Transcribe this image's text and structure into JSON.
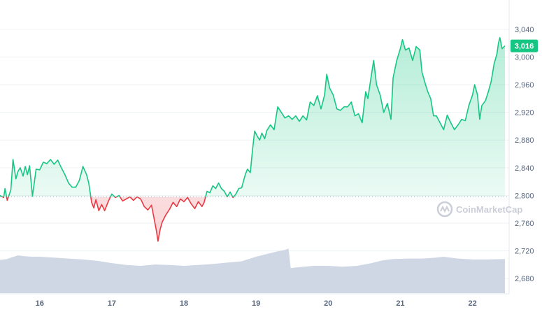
{
  "chart_data": {
    "type": "area",
    "title": "",
    "xlabel": "",
    "ylabel": "",
    "x_tick_labels": [
      "16",
      "17",
      "18",
      "19",
      "20",
      "21",
      "22"
    ],
    "y_ticks": [
      2680,
      2720,
      2760,
      2800,
      2840,
      2880,
      2920,
      2960,
      3000,
      3040
    ],
    "y_tick_labels": [
      "2,680",
      "2,720",
      "2,760",
      "2,800",
      "2,840",
      "2,880",
      "2,920",
      "2,960",
      "3,000",
      "3,040"
    ],
    "ylim": [
      2660,
      3052
    ],
    "xlim": [
      15.45,
      22.45
    ],
    "baseline": 2798,
    "current_price": 3016,
    "current_price_label": "3,016",
    "colors": {
      "up": "#16c784",
      "down": "#ea3943",
      "volume": "#cfd6e4",
      "grid": "#eff2f5"
    },
    "series": [
      {
        "values": [
          [
            15.45,
            2800
          ],
          [
            15.5,
            2797
          ],
          [
            15.52,
            2810
          ],
          [
            15.55,
            2793
          ],
          [
            15.6,
            2808
          ],
          [
            15.63,
            2852
          ],
          [
            15.67,
            2824
          ],
          [
            15.7,
            2835
          ],
          [
            15.73,
            2840
          ],
          [
            15.77,
            2828
          ],
          [
            15.8,
            2842
          ],
          [
            15.83,
            2830
          ],
          [
            15.86,
            2843
          ],
          [
            15.9,
            2799
          ],
          [
            15.95,
            2838
          ],
          [
            16.0,
            2837
          ],
          [
            16.05,
            2848
          ],
          [
            16.1,
            2846
          ],
          [
            16.15,
            2852
          ],
          [
            16.2,
            2845
          ],
          [
            16.25,
            2851
          ],
          [
            16.3,
            2840
          ],
          [
            16.35,
            2830
          ],
          [
            16.4,
            2818
          ],
          [
            16.45,
            2812
          ],
          [
            16.5,
            2812
          ],
          [
            16.55,
            2822
          ],
          [
            16.6,
            2842
          ],
          [
            16.65,
            2830
          ],
          [
            16.68,
            2818
          ],
          [
            16.72,
            2790
          ],
          [
            16.75,
            2782
          ],
          [
            16.78,
            2794
          ],
          [
            16.82,
            2778
          ],
          [
            16.86,
            2787
          ],
          [
            16.9,
            2778
          ],
          [
            16.95,
            2791
          ],
          [
            17.0,
            2802
          ],
          [
            17.05,
            2797
          ],
          [
            17.1,
            2800
          ],
          [
            17.15,
            2792
          ],
          [
            17.2,
            2795
          ],
          [
            17.25,
            2798
          ],
          [
            17.3,
            2793
          ],
          [
            17.35,
            2798
          ],
          [
            17.4,
            2795
          ],
          [
            17.45,
            2784
          ],
          [
            17.5,
            2779
          ],
          [
            17.55,
            2786
          ],
          [
            17.58,
            2770
          ],
          [
            17.62,
            2748
          ],
          [
            17.64,
            2734
          ],
          [
            17.67,
            2751
          ],
          [
            17.7,
            2762
          ],
          [
            17.75,
            2772
          ],
          [
            17.8,
            2780
          ],
          [
            17.85,
            2790
          ],
          [
            17.9,
            2784
          ],
          [
            17.95,
            2795
          ],
          [
            18.0,
            2791
          ],
          [
            18.05,
            2797
          ],
          [
            18.1,
            2788
          ],
          [
            18.15,
            2781
          ],
          [
            18.2,
            2791
          ],
          [
            18.25,
            2784
          ],
          [
            18.28,
            2790
          ],
          [
            18.32,
            2806
          ],
          [
            18.36,
            2804
          ],
          [
            18.4,
            2814
          ],
          [
            18.44,
            2810
          ],
          [
            18.48,
            2818
          ],
          [
            18.52,
            2810
          ],
          [
            18.56,
            2806
          ],
          [
            18.6,
            2798
          ],
          [
            18.64,
            2805
          ],
          [
            18.68,
            2797
          ],
          [
            18.72,
            2802
          ],
          [
            18.76,
            2810
          ],
          [
            18.8,
            2811
          ],
          [
            18.85,
            2830
          ],
          [
            18.88,
            2838
          ],
          [
            18.92,
            2833
          ],
          [
            18.95,
            2865
          ],
          [
            18.98,
            2893
          ],
          [
            19.02,
            2885
          ],
          [
            19.05,
            2880
          ],
          [
            19.08,
            2890
          ],
          [
            19.12,
            2882
          ],
          [
            19.15,
            2894
          ],
          [
            19.2,
            2902
          ],
          [
            19.25,
            2895
          ],
          [
            19.3,
            2928
          ],
          [
            19.35,
            2920
          ],
          [
            19.4,
            2912
          ],
          [
            19.45,
            2915
          ],
          [
            19.5,
            2910
          ],
          [
            19.55,
            2915
          ],
          [
            19.6,
            2907
          ],
          [
            19.65,
            2915
          ],
          [
            19.7,
            2909
          ],
          [
            19.75,
            2935
          ],
          [
            19.8,
            2930
          ],
          [
            19.85,
            2944
          ],
          [
            19.9,
            2925
          ],
          [
            19.95,
            2945
          ],
          [
            19.98,
            2975
          ],
          [
            20.02,
            2955
          ],
          [
            20.07,
            2945
          ],
          [
            20.12,
            2925
          ],
          [
            20.17,
            2923
          ],
          [
            20.22,
            2928
          ],
          [
            20.27,
            2928
          ],
          [
            20.32,
            2935
          ],
          [
            20.37,
            2915
          ],
          [
            20.42,
            2918
          ],
          [
            20.47,
            2905
          ],
          [
            20.52,
            2950
          ],
          [
            20.55,
            2940
          ],
          [
            20.6,
            2975
          ],
          [
            20.63,
            2995
          ],
          [
            20.67,
            2960
          ],
          [
            20.72,
            2945
          ],
          [
            20.77,
            2920
          ],
          [
            20.82,
            2933
          ],
          [
            20.87,
            2910
          ],
          [
            20.9,
            2970
          ],
          [
            20.95,
            2995
          ],
          [
            21.0,
            3012
          ],
          [
            21.03,
            3025
          ],
          [
            21.07,
            3010
          ],
          [
            21.12,
            3013
          ],
          [
            21.17,
            2995
          ],
          [
            21.22,
            3015
          ],
          [
            21.27,
            3010
          ],
          [
            21.3,
            2978
          ],
          [
            21.35,
            2960
          ],
          [
            21.38,
            2950
          ],
          [
            21.42,
            2940
          ],
          [
            21.46,
            2915
          ],
          [
            21.5,
            2915
          ],
          [
            21.55,
            2905
          ],
          [
            21.6,
            2895
          ],
          [
            21.65,
            2916
          ],
          [
            21.7,
            2905
          ],
          [
            21.75,
            2895
          ],
          [
            21.8,
            2902
          ],
          [
            21.85,
            2910
          ],
          [
            21.9,
            2908
          ],
          [
            21.95,
            2930
          ],
          [
            22.0,
            2945
          ],
          [
            22.03,
            2960
          ],
          [
            22.07,
            2945
          ],
          [
            22.1,
            2910
          ],
          [
            22.13,
            2930
          ],
          [
            22.18,
            2937
          ],
          [
            22.22,
            2950
          ],
          [
            22.26,
            2965
          ],
          [
            22.3,
            2990
          ],
          [
            22.34,
            3005
          ],
          [
            22.36,
            3020
          ],
          [
            22.38,
            3028
          ],
          [
            22.41,
            3012
          ],
          [
            22.45,
            3016
          ]
        ]
      }
    ],
    "volume": [
      [
        15.45,
        0.73
      ],
      [
        15.55,
        0.75
      ],
      [
        15.6,
        0.78
      ],
      [
        15.7,
        0.83
      ],
      [
        15.8,
        0.81
      ],
      [
        15.9,
        0.8
      ],
      [
        16.0,
        0.8
      ],
      [
        16.2,
        0.78
      ],
      [
        16.4,
        0.76
      ],
      [
        16.6,
        0.74
      ],
      [
        16.8,
        0.71
      ],
      [
        17.0,
        0.66
      ],
      [
        17.2,
        0.62
      ],
      [
        17.4,
        0.6
      ],
      [
        17.6,
        0.63
      ],
      [
        17.8,
        0.62
      ],
      [
        18.0,
        0.6
      ],
      [
        18.2,
        0.62
      ],
      [
        18.4,
        0.64
      ],
      [
        18.6,
        0.67
      ],
      [
        18.8,
        0.7
      ],
      [
        19.0,
        0.8
      ],
      [
        19.2,
        0.88
      ],
      [
        19.3,
        0.92
      ],
      [
        19.4,
        0.95
      ],
      [
        19.45,
        0.98
      ],
      [
        19.48,
        0.55
      ],
      [
        19.6,
        0.57
      ],
      [
        19.8,
        0.6
      ],
      [
        20.0,
        0.6
      ],
      [
        20.2,
        0.58
      ],
      [
        20.4,
        0.6
      ],
      [
        20.6,
        0.66
      ],
      [
        20.75,
        0.72
      ],
      [
        20.9,
        0.75
      ],
      [
        21.1,
        0.76
      ],
      [
        21.3,
        0.76
      ],
      [
        21.5,
        0.78
      ],
      [
        21.6,
        0.8
      ],
      [
        21.8,
        0.76
      ],
      [
        22.0,
        0.74
      ],
      [
        22.2,
        0.74
      ],
      [
        22.45,
        0.75
      ]
    ]
  },
  "watermark": {
    "text": "CoinMarketCap"
  }
}
